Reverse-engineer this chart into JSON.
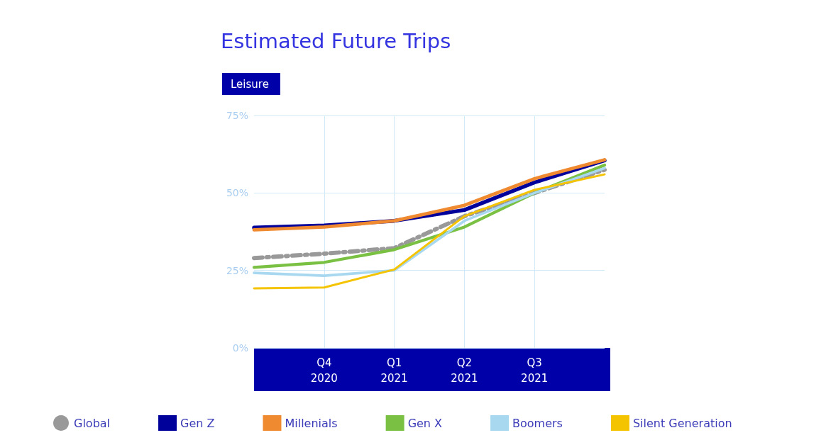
{
  "chart_data": {
    "type": "line",
    "title": "Estimated Future Trips",
    "subtitle": "Leisure",
    "categories": [
      null,
      "Q4\n2020",
      "Q1\n2021",
      "Q2\n2021",
      "Q3\n2021",
      null
    ],
    "ylim": [
      0,
      75
    ],
    "yticks": [
      {
        "value": 0,
        "label": "0%"
      },
      {
        "value": 25,
        "label": "25%"
      },
      {
        "value": 50,
        "label": "50%"
      },
      {
        "value": 75,
        "label": "75%"
      }
    ],
    "grid": true,
    "legend": "bottom",
    "marker": "none",
    "series": [
      {
        "name": "Global",
        "color": "#999999",
        "line_style": "dashed",
        "values": [
          29,
          30.4,
          32.2,
          42.5,
          50,
          57.5
        ]
      },
      {
        "name": "Gen Z",
        "color": "#00009a",
        "values": [
          38.8,
          39.5,
          41,
          44.5,
          53.4,
          60.5
        ]
      },
      {
        "name": "Millenials",
        "color": "#f08a30",
        "values": [
          38.1,
          39,
          41,
          46,
          54.6,
          60.7
        ]
      },
      {
        "name": "Gen X",
        "color": "#7ac143",
        "values": [
          26,
          27.6,
          31.7,
          39,
          50,
          59
        ]
      },
      {
        "name": "Boomers",
        "color": "#a8d8f0",
        "values": [
          24.2,
          23.3,
          25,
          41,
          50,
          58
        ]
      },
      {
        "name": "Silent Generation",
        "color": "#f5c400",
        "values": [
          19.2,
          19.5,
          25.3,
          42.5,
          51,
          56
        ]
      }
    ]
  }
}
